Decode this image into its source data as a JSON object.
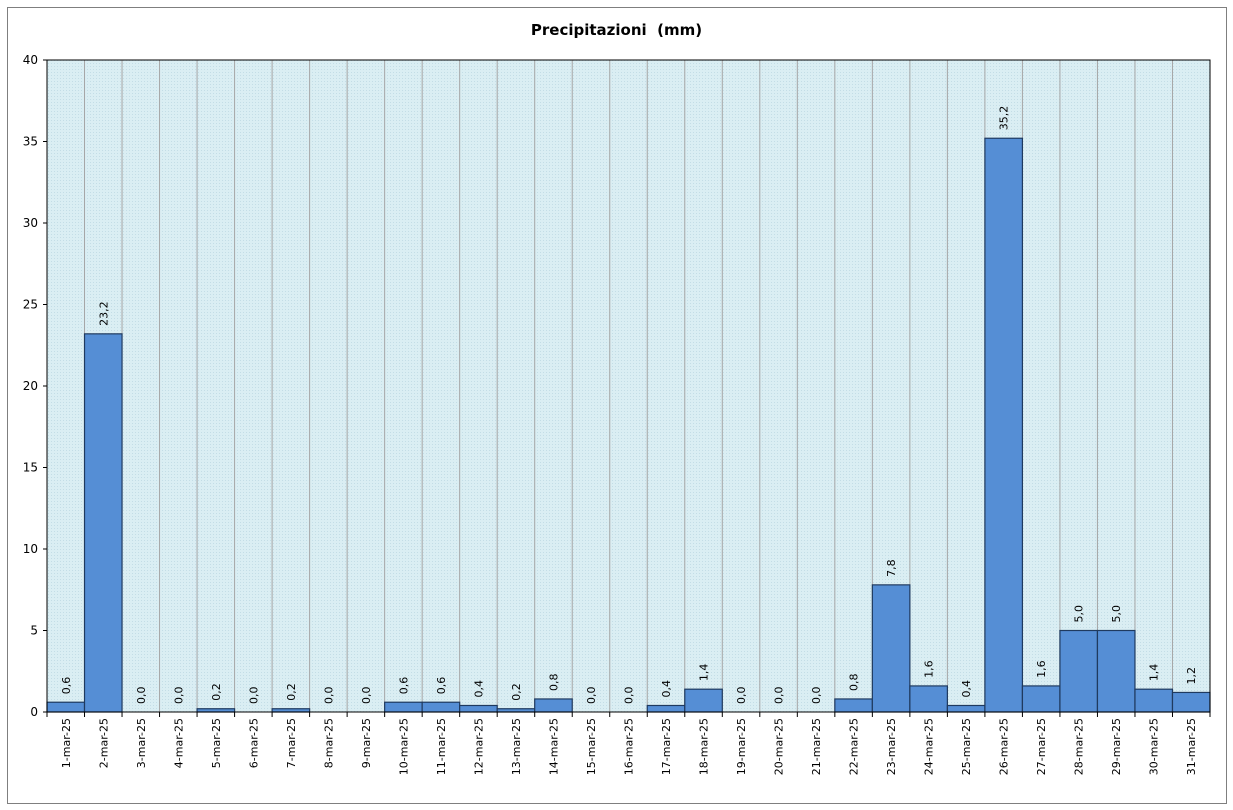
{
  "chart_data": {
    "type": "bar",
    "title": "Precipitazioni  (mm)",
    "xlabel": "",
    "ylabel": "",
    "ylim": [
      0,
      40
    ],
    "yticks": [
      0,
      5,
      10,
      15,
      20,
      25,
      30,
      35,
      40
    ],
    "grid": true,
    "legend": "none",
    "bar_color": "#558ed5",
    "plot_background": "#daeef3",
    "categories": [
      "1-mar-25",
      "2-mar-25",
      "3-mar-25",
      "4-mar-25",
      "5-mar-25",
      "6-mar-25",
      "7-mar-25",
      "8-mar-25",
      "9-mar-25",
      "10-mar-25",
      "11-mar-25",
      "12-mar-25",
      "13-mar-25",
      "14-mar-25",
      "15-mar-25",
      "16-mar-25",
      "17-mar-25",
      "18-mar-25",
      "19-mar-25",
      "20-mar-25",
      "21-mar-25",
      "22-mar-25",
      "23-mar-25",
      "24-mar-25",
      "25-mar-25",
      "26-mar-25",
      "27-mar-25",
      "28-mar-25",
      "29-mar-25",
      "30-mar-25",
      "31-mar-25"
    ],
    "values": [
      0.6,
      23.2,
      0.0,
      0.0,
      0.2,
      0.0,
      0.2,
      0.0,
      0.0,
      0.6,
      0.6,
      0.4,
      0.2,
      0.8,
      0.0,
      0.0,
      0.4,
      1.4,
      0.0,
      0.0,
      0.0,
      0.8,
      7.8,
      1.6,
      0.4,
      35.2,
      1.6,
      5.0,
      5.0,
      1.4,
      1.2
    ],
    "data_labels": [
      "0,6",
      "23,2",
      "0,0",
      "0,0",
      "0,2",
      "0,0",
      "0,2",
      "0,0",
      "0,0",
      "0,6",
      "0,6",
      "0,4",
      "0,2",
      "0,8",
      "0,0",
      "0,0",
      "0,4",
      "1,4",
      "0,0",
      "0,0",
      "0,0",
      "0,8",
      "7,8",
      "1,6",
      "0,4",
      "35,2",
      "1,6",
      "5,0",
      "5,0",
      "1,4",
      "1,2"
    ]
  }
}
